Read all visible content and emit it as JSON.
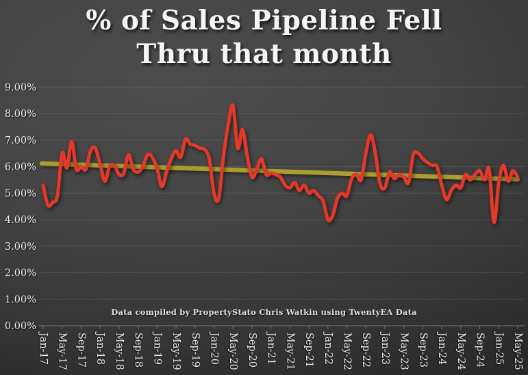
{
  "title": {
    "line1": "% of Sales Pipeline Fell",
    "line2": "Thru that month"
  },
  "annotation": "Data compiled by PropertyStato Chris Watkin using TwentyEA Data",
  "colors": {
    "background": "#3d3d3d",
    "series_red": "#e2392a",
    "trend_yellow": "#b5a52e",
    "gridline": "rgba(255,255,255,0.10)",
    "axis_line": "rgba(255,255,255,0.30)",
    "axis_text": "#ececec"
  },
  "chart_data": {
    "type": "line",
    "title": "% of Sales Pipeline Fell Thru that month",
    "xlabel": "",
    "ylabel": "",
    "ylim": [
      0,
      9
    ],
    "grid": "horizontal",
    "legend_position": "none",
    "ytick_labels": [
      "0.00%",
      "1.00%",
      "2.00%",
      "3.00%",
      "4.00%",
      "5.00%",
      "6.00%",
      "7.00%",
      "8.00%",
      "9.00%"
    ],
    "xtick_labels": [
      "Jan-17",
      "May-17",
      "Sep-17",
      "Jan-18",
      "May-18",
      "Sep-18",
      "Jan-19",
      "May-19",
      "Sep-19",
      "Jan-20",
      "May-20",
      "Sep-20",
      "Jan-21",
      "May-21",
      "Sep-21",
      "Jan-22",
      "May-22",
      "Sep-22",
      "Jan-23",
      "May-23",
      "Sep-23",
      "Jan-24",
      "May-24",
      "Sep-24",
      "Jan-25",
      "May-25"
    ],
    "x": [
      "Jan-17",
      "Feb-17",
      "Mar-17",
      "Apr-17",
      "May-17",
      "Jun-17",
      "Jul-17",
      "Aug-17",
      "Sep-17",
      "Oct-17",
      "Nov-17",
      "Dec-17",
      "Jan-18",
      "Feb-18",
      "Mar-18",
      "Apr-18",
      "May-18",
      "Jun-18",
      "Jul-18",
      "Aug-18",
      "Sep-18",
      "Oct-18",
      "Nov-18",
      "Dec-18",
      "Jan-19",
      "Feb-19",
      "Mar-19",
      "Apr-19",
      "May-19",
      "Jun-19",
      "Jul-19",
      "Aug-19",
      "Sep-19",
      "Oct-19",
      "Nov-19",
      "Dec-19",
      "Jan-20",
      "Feb-20",
      "Mar-20",
      "Apr-20",
      "May-20",
      "Jun-20",
      "Jul-20",
      "Aug-20",
      "Sep-20",
      "Oct-20",
      "Nov-20",
      "Dec-20",
      "Jan-21",
      "Feb-21",
      "Mar-21",
      "Apr-21",
      "May-21",
      "Jun-21",
      "Jul-21",
      "Aug-21",
      "Sep-21",
      "Oct-21",
      "Nov-21",
      "Dec-21",
      "Jan-22",
      "Feb-22",
      "Mar-22",
      "Apr-22",
      "May-22",
      "Jun-22",
      "Jul-22",
      "Aug-22",
      "Sep-22",
      "Oct-22",
      "Nov-22",
      "Dec-22",
      "Jan-23",
      "Feb-23",
      "Mar-23",
      "Apr-23",
      "May-23",
      "Jun-23",
      "Jul-23",
      "Aug-23",
      "Sep-23",
      "Oct-23",
      "Nov-23",
      "Dec-23",
      "Jan-24",
      "Feb-24",
      "Mar-24",
      "Apr-24",
      "May-24",
      "Jun-24",
      "Jul-24",
      "Aug-24",
      "Sep-24",
      "Oct-24",
      "Nov-24",
      "Dec-24",
      "Jan-25",
      "Feb-25",
      "Mar-25",
      "Apr-25",
      "May-25"
    ],
    "series": [
      {
        "name": "% of sales pipeline fell through",
        "color": "#e2392a",
        "values": [
          5.3,
          4.55,
          4.65,
          4.9,
          6.5,
          5.95,
          6.95,
          5.9,
          6.0,
          5.9,
          6.6,
          6.7,
          6.1,
          5.45,
          6.0,
          6.05,
          5.7,
          5.75,
          6.45,
          5.9,
          5.8,
          6.0,
          6.45,
          6.35,
          5.95,
          5.25,
          5.8,
          6.3,
          6.6,
          6.35,
          7.05,
          6.85,
          6.8,
          6.7,
          6.65,
          6.3,
          5.0,
          4.8,
          6.4,
          7.6,
          8.3,
          6.7,
          7.4,
          6.4,
          5.6,
          5.9,
          6.3,
          5.7,
          5.75,
          5.7,
          5.6,
          5.3,
          5.2,
          5.4,
          5.1,
          5.3,
          5.0,
          5.1,
          4.9,
          4.7,
          4.0,
          4.15,
          4.8,
          5.0,
          4.9,
          5.55,
          5.7,
          5.5,
          6.5,
          7.2,
          6.5,
          5.35,
          5.2,
          5.8,
          5.55,
          5.7,
          5.6,
          5.4,
          6.45,
          6.5,
          6.3,
          6.15,
          6.05,
          6.0,
          5.3,
          4.75,
          5.1,
          5.3,
          5.2,
          5.7,
          5.5,
          5.7,
          5.85,
          5.5,
          5.9,
          3.9,
          5.4,
          6.05,
          5.45,
          5.85,
          5.6
        ]
      },
      {
        "name": "Linear trend",
        "type": "trend",
        "color": "#b5a52e",
        "start": 6.12,
        "end": 5.52
      }
    ]
  }
}
